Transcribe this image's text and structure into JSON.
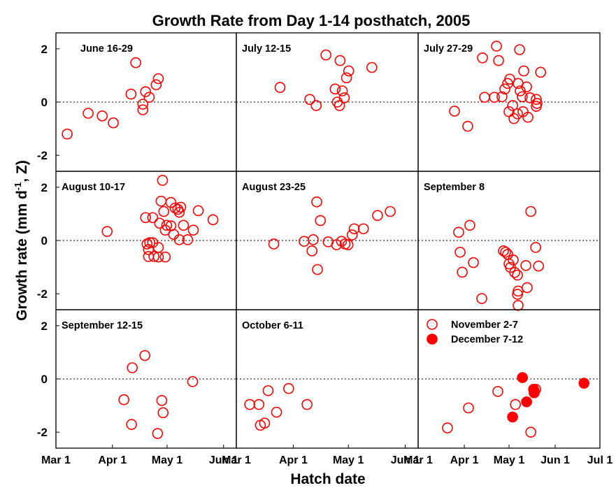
{
  "title": "Growth Rate from Day 1-14 posthatch, 2005",
  "x_label": "Hatch date",
  "y_label": {
    "text": "Growth rate  (mm d",
    "sup": "-1",
    "tail": ", Z)"
  },
  "chart_data": [
    {
      "type": "scatter",
      "title": "June 16-29",
      "color": "#ff0000",
      "marker": "open",
      "x": [
        6.2,
        17.7,
        25.4,
        31.5,
        41.2,
        43.8,
        47.7,
        47.7,
        49.2,
        51.2,
        55,
        56.2
      ],
      "values": [
        -1.2,
        -0.42,
        -0.52,
        -0.78,
        0.3,
        1.48,
        -0.08,
        -0.29,
        0.39,
        0.18,
        0.65,
        0.88
      ],
      "xlim": [
        0,
        99
      ],
      "ylim": [
        -2.6,
        2.6
      ],
      "yticks": [
        -2,
        0,
        2
      ],
      "refline": 0
    },
    {
      "type": "scatter",
      "title": "July 12-15",
      "color": "#ff0000",
      "marker": "open",
      "x": [
        23.8,
        40.0,
        43.5,
        48.8,
        53.8,
        55.0,
        56.5,
        56.2,
        57.7,
        58.8,
        60.0,
        61.2,
        73.8
      ],
      "values": [
        0.55,
        0.1,
        -0.13,
        1.77,
        0.49,
        0,
        1.56,
        -0.13,
        0.42,
        0.16,
        0.91,
        1.17,
        1.3
      ],
      "xlim": [
        0,
        99
      ],
      "ylim": [
        -2.6,
        2.6
      ],
      "refline": 0
    },
    {
      "type": "scatter",
      "title": "July 27-29",
      "color": "#ff0000",
      "marker": "open",
      "x": [
        24.4,
        33.3,
        43.2,
        44.6,
        51.2,
        52.6,
        54.0,
        56.3,
        58.2,
        60.1,
        61.5,
        61.0,
        63.4,
        64.3,
        66.7,
        67.1,
        68.1,
        68.5,
        69.9,
        70.4,
        70.9,
        72.8,
        73.7,
        75.1,
        79.8,
        79.3,
        79.3,
        82.2
      ],
      "values": [
        -0.34,
        -0.91,
        1.66,
        0.18,
        0.18,
        2.1,
        1.56,
        0.2,
        0.49,
        0.7,
        0.86,
        -0.36,
        -0.13,
        -0.62,
        -0.44,
        0.7,
        1.97,
        0.42,
        0.2,
        -0.36,
        1.17,
        0.57,
        -0.57,
        0.16,
        -0.05,
        0.1,
        -0.16,
        1.12
      ],
      "xlim": [
        0,
        122
      ],
      "ylim": [
        -2.6,
        2.6
      ],
      "refline": 0
    },
    {
      "type": "scatter",
      "title": "August 10-17",
      "color": "#ff0000",
      "marker": "open",
      "x": [
        28.1,
        58.5,
        57.7,
        53.1,
        49.2,
        63.1,
        65.4,
        66.9,
        68.5,
        67.7,
        78.1,
        86.2,
        59.2,
        56.9,
        60.8,
        60.0,
        63.1,
        70.0,
        75.4,
        64.6,
        67.7,
        72.3,
        51.5,
        53.1,
        50.8,
        56.2,
        50.8,
        53.8,
        56.2,
        60.0,
        50.0
      ],
      "values": [
        0.34,
        2.26,
        1.48,
        0.86,
        0.86,
        1.43,
        1.22,
        1.17,
        1.25,
        1.06,
        1.12,
        0.78,
        1.09,
        0.65,
        0.57,
        0.39,
        0.55,
        0.57,
        0.39,
        0.23,
        0.03,
        0.03,
        -0.08,
        -0.08,
        -0.34,
        -0.26,
        -0.6,
        -0.6,
        -0.62,
        -0.62,
        -0.13
      ],
      "xlim": [
        0,
        99
      ],
      "ylim": [
        -2.6,
        2.6
      ],
      "yticks": [
        -2,
        0,
        2
      ],
      "refline": 0
    },
    {
      "type": "scatter",
      "title": "August 23-25",
      "color": "#ff0000",
      "marker": "open",
      "x": [
        20.4,
        36.9,
        41.2,
        41.9,
        43.8,
        44.2,
        45.8,
        50,
        54.6,
        57.3,
        59.2,
        60.8,
        63.1,
        64.2,
        69.2,
        76.9,
        83.8
      ],
      "values": [
        -0.13,
        -0.03,
        -0.39,
        0.03,
        1.45,
        -1.09,
        0.75,
        -0.05,
        -0.16,
        -0.03,
        -0.13,
        -0.16,
        0.21,
        0.44,
        0.44,
        0.94,
        1.09
      ],
      "xlim": [
        0,
        99
      ],
      "ylim": [
        -2.6,
        2.6
      ],
      "refline": 0
    },
    {
      "type": "scatter",
      "title": "September 8",
      "color": "#ff0000",
      "marker": "open",
      "x": [
        27.2,
        34.7,
        28.2,
        29.6,
        37.1,
        42.7,
        57.3,
        58.7,
        60.1,
        63.8,
        62,
        64.8,
        66.7,
        67.1,
        67.1,
        66.7,
        72.3,
        73.2,
        75.6,
        78.9,
        80.8,
        61
      ],
      "values": [
        0.31,
        0.57,
        -0.44,
        -1.19,
        -0.83,
        -2.18,
        -0.39,
        -0.44,
        -0.52,
        -0.73,
        -1.01,
        -1.2,
        -2.02,
        -1.9,
        -2.44,
        -1.3,
        -0.94,
        -1.77,
        1.09,
        -0.26,
        -0.96,
        -0.88
      ],
      "xlim": [
        0,
        122
      ],
      "ylim": [
        -2.6,
        2.6
      ],
      "refline": 0
    },
    {
      "type": "scatter",
      "title": "September 12-15",
      "color": "#ff0000",
      "marker": "open",
      "x": [
        37.3,
        41.5,
        41.9,
        48.8,
        55.8,
        58.1,
        58.8,
        75
      ],
      "values": [
        -0.78,
        -1.71,
        0.42,
        0.88,
        -2.05,
        -0.81,
        -1.27,
        -0.1
      ],
      "xlim": [
        0,
        99
      ],
      "ylim": [
        -2.6,
        2.6
      ],
      "yticks": [
        -2,
        0,
        2
      ],
      "refline": 0,
      "xticks": [
        {
          "value": 0,
          "label": "Mar 1"
        },
        {
          "value": 31,
          "label": "Apr 1"
        },
        {
          "value": 61,
          "label": "May 1"
        },
        {
          "value": 92,
          "label": "Jun 1"
        }
      ]
    },
    {
      "type": "scatter",
      "title": "October 6-11",
      "color": "#ff0000",
      "marker": "open",
      "x": [
        7.3,
        12.3,
        13.1,
        15.4,
        17.3,
        21.9,
        28.5,
        38.5
      ],
      "values": [
        -0.96,
        -0.96,
        -1.74,
        -1.66,
        -0.44,
        -1.25,
        -0.36,
        -0.96
      ],
      "xlim": [
        0,
        99
      ],
      "ylim": [
        -2.6,
        2.6
      ],
      "refline": 0,
      "xticks": [
        {
          "value": 0,
          "label": "Mar 1"
        },
        {
          "value": 31,
          "label": "Apr 1"
        },
        {
          "value": 61,
          "label": "May 1"
        },
        {
          "value": 92,
          "label": "Jun 1"
        }
      ]
    },
    {
      "type": "scatter",
      "legend": "upper-left",
      "series": [
        {
          "name": "November 2-7",
          "color": "#ff0000",
          "marker": "open",
          "x": [
            19.7,
            33.8,
            53.5,
            65.3,
            77.9,
            75.6,
            78.9
          ],
          "values": [
            -1.84,
            -1.09,
            -0.47,
            -0.96,
            -0.47,
            -2.0,
            -0.39
          ]
        },
        {
          "name": "December 7-12",
          "color": "#ff0000",
          "marker": "filled",
          "x": [
            63.4,
            70,
            72.8,
            77.5,
            77.9,
            111.3
          ],
          "values": [
            -1.43,
            0.05,
            -0.86,
            -0.39,
            -0.52,
            -0.16
          ]
        }
      ],
      "xlim": [
        0,
        122
      ],
      "ylim": [
        -2.6,
        2.6
      ],
      "refline": 0,
      "xticks": [
        {
          "value": 0,
          "label": "Mar 1"
        },
        {
          "value": 31,
          "label": "Apr 1"
        },
        {
          "value": 61,
          "label": "May 1"
        },
        {
          "value": 92,
          "label": "Jun 1"
        },
        {
          "value": 122,
          "label": "Jul 1"
        }
      ]
    }
  ]
}
